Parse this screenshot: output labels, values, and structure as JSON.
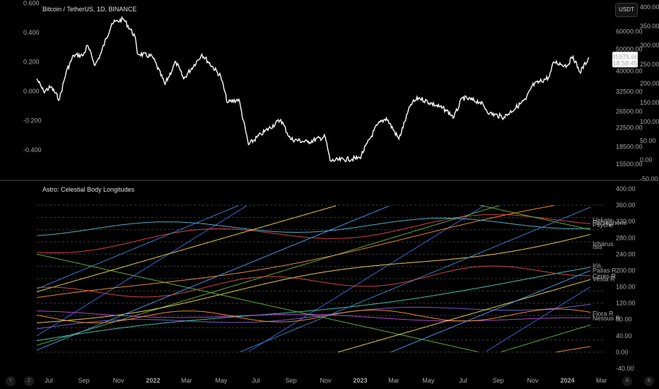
{
  "header": {
    "symbol_title": "Bitcoin / TetherUS, 1D, BINANCE",
    "indicator_title": "Astro: Celestial Body Longitudes",
    "currency_button": "USDT",
    "last_price": "45975.66",
    "countdown": "18:58:45"
  },
  "bottom_controls": {
    "left": [
      "Y",
      "Z"
    ],
    "right": [
      "A",
      "B"
    ]
  },
  "colors": {
    "background": "#000000",
    "price_line": "#ffffff",
    "divider": "#4a4a4a",
    "grid": "#3a3a3a"
  },
  "chart_data": [
    {
      "type": "line",
      "title": "Bitcoin / TetherUS, 1D, BINANCE",
      "x_tick_labels": [
        "Jul",
        "Sep",
        "Nov",
        "2022",
        "Mar",
        "May",
        "Jul",
        "Sep",
        "Nov",
        "2023",
        "Mar",
        "May",
        "Jul",
        "Sep",
        "Nov",
        "2024",
        "Mar"
      ],
      "y_right_tick_labels": [
        "60000.00",
        "50000.00",
        "40000.00",
        "32500.00",
        "26500.00",
        "22500.00",
        "18500.00",
        "15500.00"
      ],
      "y_left_tick_labels": [
        "0.600",
        "0.400",
        "0.200",
        "0.000",
        "-0.200",
        "-0.400"
      ],
      "y_right2_tick_labels": [
        "400.00",
        "350.00",
        "300.00",
        "250.00",
        "200.00",
        "150.00",
        "100.00",
        "50.00",
        "0.00",
        "-50.00"
      ],
      "series": [
        {
          "values": [
            [
              "2021-06-10",
              37000
            ],
            [
              "2021-06-22",
              32500
            ],
            [
              "2021-07-05",
              34000
            ],
            [
              "2021-07-20",
              30000
            ],
            [
              "2021-08-01",
              39800
            ],
            [
              "2021-08-14",
              47000
            ],
            [
              "2021-08-31",
              47000
            ],
            [
              "2021-09-07",
              52000
            ],
            [
              "2021-09-21",
              42500
            ],
            [
              "2021-10-01",
              48000
            ],
            [
              "2021-10-20",
              65000
            ],
            [
              "2021-11-10",
              68000
            ],
            [
              "2021-11-30",
              57000
            ],
            [
              "2021-12-04",
              48000
            ],
            [
              "2021-12-31",
              46300
            ],
            [
              "2022-01-22",
              35000
            ],
            [
              "2022-02-10",
              44000
            ],
            [
              "2022-02-24",
              37000
            ],
            [
              "2022-03-28",
              47500
            ],
            [
              "2022-04-30",
              38000
            ],
            [
              "2022-05-12",
              29000
            ],
            [
              "2022-06-01",
              30000
            ],
            [
              "2022-06-18",
              18900
            ],
            [
              "2022-07-10",
              21000
            ],
            [
              "2022-08-14",
              24400
            ],
            [
              "2022-08-31",
              20000
            ],
            [
              "2022-09-30",
              19400
            ],
            [
              "2022-10-31",
              20500
            ],
            [
              "2022-11-09",
              16000
            ],
            [
              "2022-12-31",
              16500
            ],
            [
              "2023-01-31",
              23100
            ],
            [
              "2023-02-16",
              24800
            ],
            [
              "2023-03-10",
              20000
            ],
            [
              "2023-03-31",
              28500
            ],
            [
              "2023-04-14",
              30500
            ],
            [
              "2023-05-31",
              27000
            ],
            [
              "2023-06-15",
              25000
            ],
            [
              "2023-06-30",
              30500
            ],
            [
              "2023-07-31",
              29200
            ],
            [
              "2023-08-17",
              26000
            ],
            [
              "2023-09-11",
              25000
            ],
            [
              "2023-10-20",
              30000
            ],
            [
              "2023-10-31",
              34500
            ],
            [
              "2023-11-30",
              37700
            ],
            [
              "2023-12-08",
              44000
            ],
            [
              "2023-12-31",
              42300
            ],
            [
              "2024-01-11",
              46500
            ],
            [
              "2024-01-23",
              39500
            ],
            [
              "2024-02-08",
              45975.66
            ]
          ]
        }
      ]
    },
    {
      "type": "line",
      "title": "Astro: Celestial Body Longitudes",
      "y_tick_labels": [
        "400.00",
        "360.00",
        "320.00",
        "280.00",
        "240.00",
        "200.00",
        "160.00",
        "120.00",
        "80.00",
        "40.00",
        "0.00",
        "-40.00"
      ],
      "ylim": [
        -40,
        400
      ],
      "dashed_levels": [
        360,
        330,
        300,
        270,
        240,
        210,
        180,
        150,
        120,
        90,
        60,
        30,
        0
      ],
      "series": [
        {
          "name": "Hekate",
          "color": "#5bc0de",
          "values": [
            [
              0,
              318
            ],
            [
              100,
              323
            ]
          ]
        },
        {
          "name": "Persephone",
          "color": "#3d8bd6",
          "values": [
            [
              0,
              314
            ],
            [
              100,
              317
            ]
          ]
        },
        {
          "name": "Psyche",
          "color": "#ff9933",
          "values": [
            [
              0,
              300
            ],
            [
              100,
              312
            ]
          ]
        },
        {
          "name": "Icharus",
          "color": "#66bb44",
          "values": [
            [
              0,
              270
            ],
            [
              100,
              265
            ]
          ]
        },
        {
          "name": "Isis",
          "color": "#8866dd",
          "values": [
            [
              0,
              255
            ],
            [
              100,
              258
            ]
          ]
        },
        {
          "name": "Iris",
          "color": "#e84d4d",
          "values": [
            [
              0,
              205
            ],
            [
              100,
              212
            ]
          ]
        },
        {
          "name": "Pallas R",
          "color": "#4aa3ff",
          "values": [
            [
              0,
              195
            ],
            [
              100,
              200
            ]
          ]
        },
        {
          "name": "Ceres R",
          "color": "#ffe14d",
          "values": [
            [
              0,
              182
            ],
            [
              100,
              186
            ]
          ]
        },
        {
          "name": "Vesta R",
          "color": "#4ad0c0",
          "values": [
            [
              0,
              176
            ],
            [
              100,
              179
            ]
          ]
        },
        {
          "name": "Flora R",
          "color": "#ff9933",
          "values": [
            [
              0,
              92
            ],
            [
              100,
              94
            ]
          ]
        },
        {
          "name": "Nessus R",
          "color": "#c050e0",
          "values": [
            [
              0,
              82
            ],
            [
              100,
              83
            ]
          ]
        }
      ]
    }
  ]
}
